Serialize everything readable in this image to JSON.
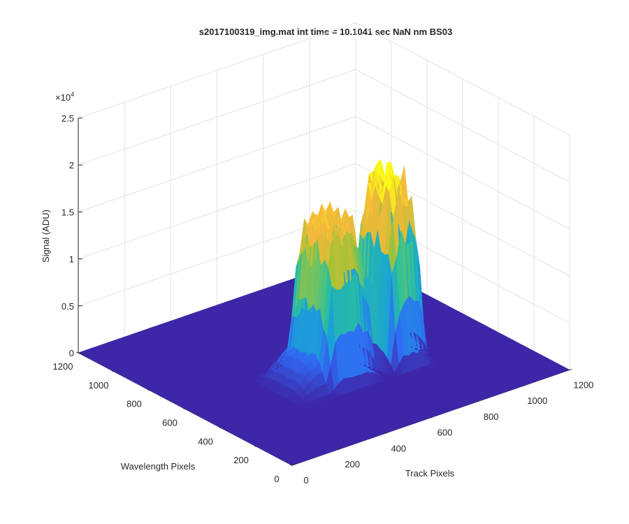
{
  "chart_data": {
    "type": "surface3d",
    "title": "s2017100319_img.mat int time = 10.1041 sec  NaN nm BS03",
    "xlabel": "Track Pixels",
    "ylabel": "Wavelength Pixels",
    "zlabel": "Signal (ADU)",
    "z_exponent_label": "×10",
    "z_exponent_power": "4",
    "xlim": [
      0,
      1200
    ],
    "ylim": [
      0,
      1200
    ],
    "zlim": [
      0,
      25000
    ],
    "x_ticks": [
      "0",
      "200",
      "400",
      "600",
      "800",
      "1000",
      "1200"
    ],
    "y_ticks": [
      "0",
      "200",
      "400",
      "600",
      "800",
      "1000",
      "1200"
    ],
    "z_ticks": [
      "0",
      "0.5",
      "1",
      "1.5",
      "2",
      "2.5"
    ],
    "grid": true,
    "colormap": [
      "#3e26a8",
      "#2f6cf4",
      "#1aa3d4",
      "#2cc29a",
      "#a6c236",
      "#f5b93a",
      "#f9fb15"
    ],
    "series": [
      {
        "track_range": [
          400,
          950
        ],
        "wavelength_range": [
          300,
          700
        ],
        "peak_track": 800,
        "peak_wavelength": 520,
        "peak_signal": 19000
      },
      {
        "track_range": [
          400,
          950
        ],
        "wavelength_range": [
          300,
          700
        ],
        "peak_track": 555,
        "peak_wavelength": 470,
        "peak_signal": 16000
      }
    ]
  }
}
